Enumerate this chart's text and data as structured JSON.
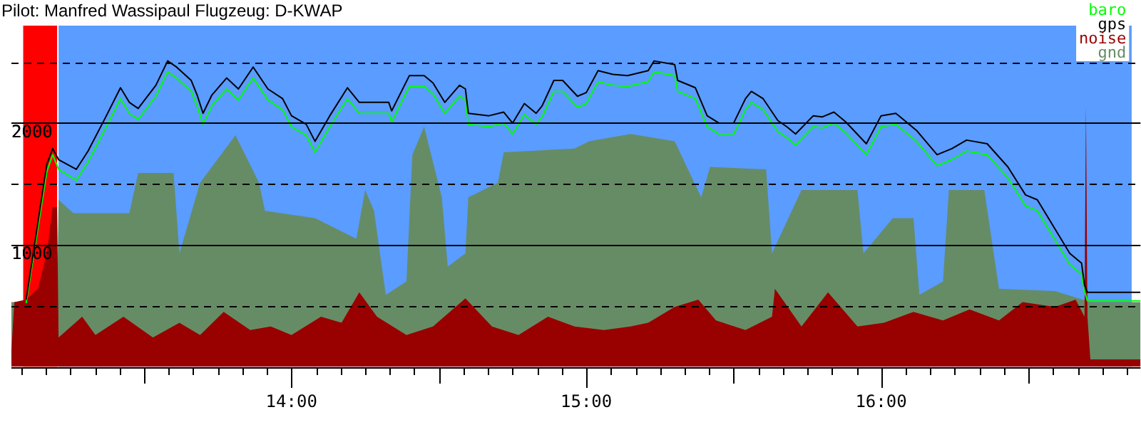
{
  "chart_data": {
    "type": "line",
    "title": "Pilot: Manfred Wassipaul Flugzeug: D-KWAP",
    "x": [
      13.1,
      13.17,
      13.19,
      13.21,
      13.27,
      13.31,
      13.37,
      13.42,
      13.45,
      13.48,
      13.54,
      13.58,
      13.61,
      13.66,
      13.68,
      13.7,
      13.73,
      13.78,
      13.82,
      13.87,
      13.92,
      13.97,
      14.0,
      14.05,
      14.08,
      14.13,
      14.19,
      14.23,
      14.28,
      14.33,
      14.34,
      14.4,
      14.45,
      14.48,
      14.52,
      14.57,
      14.59,
      14.6,
      14.67,
      14.72,
      14.75,
      14.79,
      14.83,
      14.85,
      14.89,
      14.92,
      14.97,
      15.0,
      15.04,
      15.09,
      15.14,
      15.21,
      15.23,
      15.3,
      15.31,
      15.37,
      15.41,
      15.45,
      15.5,
      15.54,
      15.56,
      15.6,
      15.65,
      15.68,
      15.71,
      15.77,
      15.8,
      15.84,
      15.88,
      15.95,
      16.0,
      16.05,
      16.12,
      16.19,
      16.24,
      16.29,
      16.36,
      16.43,
      16.49,
      16.53,
      16.59,
      16.64,
      16.68,
      16.69,
      16.7,
      16.88
    ],
    "series": [
      {
        "name": "baro",
        "type": "line",
        "color": "#00ff00",
        "values": [
          520,
          1600,
          1740,
          1620,
          1530,
          1680,
          1960,
          2200,
          2080,
          2030,
          2220,
          2420,
          2370,
          2260,
          2140,
          1990,
          2140,
          2280,
          2190,
          2370,
          2190,
          2110,
          1970,
          1900,
          1760,
          1970,
          2200,
          2080,
          2080,
          2080,
          2010,
          2300,
          2300,
          2240,
          2080,
          2220,
          2190,
          1990,
          1970,
          2000,
          1910,
          2070,
          1990,
          2050,
          2260,
          2260,
          2130,
          2160,
          2340,
          2310,
          2300,
          2340,
          2420,
          2390,
          2260,
          2200,
          1970,
          1910,
          1910,
          2110,
          2170,
          2110,
          1930,
          1880,
          1820,
          1970,
          1960,
          2000,
          1920,
          1740,
          1970,
          1990,
          1850,
          1650,
          1700,
          1770,
          1740,
          1550,
          1320,
          1280,
          1040,
          840,
          760,
          620,
          540,
          540
        ]
      },
      {
        "name": "gps",
        "type": "line",
        "color": "#000000",
        "values": [
          550,
          1660,
          1790,
          1700,
          1620,
          1770,
          2050,
          2290,
          2170,
          2120,
          2310,
          2510,
          2460,
          2350,
          2230,
          2080,
          2230,
          2370,
          2280,
          2460,
          2280,
          2200,
          2060,
          1990,
          1850,
          2060,
          2290,
          2170,
          2170,
          2170,
          2100,
          2390,
          2390,
          2330,
          2170,
          2310,
          2280,
          2080,
          2060,
          2090,
          2000,
          2160,
          2080,
          2140,
          2350,
          2350,
          2220,
          2250,
          2430,
          2400,
          2390,
          2430,
          2510,
          2480,
          2350,
          2290,
          2060,
          2000,
          2000,
          2200,
          2260,
          2200,
          2020,
          1970,
          1910,
          2060,
          2050,
          2090,
          2010,
          1830,
          2060,
          2080,
          1940,
          1740,
          1790,
          1860,
          1830,
          1640,
          1410,
          1370,
          1130,
          930,
          850,
          670,
          610,
          610
        ]
      },
      {
        "name": "noise",
        "type": "area",
        "color": "#990000",
        "x": [
          13.05,
          13.06,
          13.1,
          13.14,
          13.17,
          13.19,
          13.205,
          13.21,
          13.29,
          13.335,
          13.43,
          13.53,
          13.62,
          13.69,
          13.77,
          13.86,
          13.93,
          14.0,
          14.1,
          14.17,
          14.23,
          14.29,
          14.39,
          14.48,
          14.59,
          14.68,
          14.77,
          14.87,
          14.96,
          15.06,
          15.15,
          15.21,
          15.3,
          15.38,
          15.44,
          15.54,
          15.63,
          15.64,
          15.73,
          15.82,
          15.92,
          16.01,
          16.11,
          16.21,
          16.3,
          16.4,
          16.48,
          16.59,
          16.66,
          16.69,
          16.695,
          16.7,
          16.71,
          16.88
        ],
        "values": [
          130,
          530,
          550,
          640,
          930,
          1310,
          1310,
          240,
          410,
          260,
          410,
          240,
          360,
          260,
          450,
          300,
          330,
          260,
          410,
          360,
          610,
          410,
          260,
          330,
          560,
          330,
          260,
          410,
          330,
          300,
          330,
          360,
          490,
          550,
          380,
          300,
          410,
          640,
          330,
          610,
          330,
          360,
          450,
          380,
          470,
          380,
          530,
          490,
          550,
          410,
          2140,
          410,
          60,
          60
        ]
      },
      {
        "name": "gnd",
        "type": "area",
        "color": "#668c66",
        "x": [
          13.05,
          13.205,
          13.21,
          13.26,
          13.45,
          13.48,
          13.6,
          13.62,
          13.69,
          13.81,
          13.89,
          13.91,
          14.08,
          14.22,
          14.25,
          14.28,
          14.32,
          14.39,
          14.41,
          14.45,
          14.51,
          14.53,
          14.59,
          14.6,
          14.7,
          14.72,
          14.96,
          15.01,
          15.15,
          15.3,
          15.39,
          15.42,
          15.61,
          15.63,
          15.73,
          15.92,
          15.94,
          16.04,
          16.11,
          16.13,
          16.21,
          16.23,
          16.35,
          16.4,
          16.59,
          16.71,
          16.88
        ],
        "values": [
          530,
          530,
          1370,
          1260,
          1260,
          1590,
          1590,
          930,
          1510,
          1900,
          1510,
          1280,
          1220,
          1050,
          1450,
          1280,
          590,
          700,
          1740,
          1970,
          1390,
          820,
          930,
          1390,
          1510,
          1760,
          1790,
          1850,
          1910,
          1850,
          1390,
          1640,
          1620,
          930,
          1450,
          1450,
          930,
          1220,
          1220,
          590,
          700,
          1450,
          1450,
          640,
          620,
          530,
          530
        ]
      }
    ],
    "bands": [
      {
        "axis": "x",
        "from": 13.09,
        "to": 13.205,
        "color": "#ff0000"
      },
      {
        "axis": "x",
        "from": 13.21,
        "to": 16.85,
        "color": "#5a9cff"
      }
    ],
    "xlim": [
      13.05,
      16.88
    ],
    "xticks": [
      {
        "value": 13.0833,
        "label": null
      },
      {
        "value": 13.1667,
        "label": null
      },
      {
        "value": 13.25,
        "label": null
      },
      {
        "value": 13.3333,
        "label": null
      },
      {
        "value": 13.4167,
        "label": null
      },
      {
        "value": 13.5,
        "label": null
      },
      {
        "value": 13.5833,
        "label": null
      },
      {
        "value": 13.6667,
        "label": null
      },
      {
        "value": 13.75,
        "label": null
      },
      {
        "value": 13.8333,
        "label": null
      },
      {
        "value": 13.9167,
        "label": null
      },
      {
        "value": 14,
        "label": "14:00"
      },
      {
        "value": 14.0833,
        "label": null
      },
      {
        "value": 14.1667,
        "label": null
      },
      {
        "value": 14.25,
        "label": null
      },
      {
        "value": 14.3333,
        "label": null
      },
      {
        "value": 14.4167,
        "label": null
      },
      {
        "value": 14.5,
        "label": null
      },
      {
        "value": 14.5833,
        "label": null
      },
      {
        "value": 14.6667,
        "label": null
      },
      {
        "value": 14.75,
        "label": null
      },
      {
        "value": 14.8333,
        "label": null
      },
      {
        "value": 14.9167,
        "label": null
      },
      {
        "value": 15,
        "label": "15:00"
      },
      {
        "value": 15.0833,
        "label": null
      },
      {
        "value": 15.1667,
        "label": null
      },
      {
        "value": 15.25,
        "label": null
      },
      {
        "value": 15.3333,
        "label": null
      },
      {
        "value": 15.4167,
        "label": null
      },
      {
        "value": 15.5,
        "label": null
      },
      {
        "value": 15.5833,
        "label": null
      },
      {
        "value": 15.6667,
        "label": null
      },
      {
        "value": 15.75,
        "label": null
      },
      {
        "value": 15.8333,
        "label": null
      },
      {
        "value": 15.9167,
        "label": null
      },
      {
        "value": 16,
        "label": "16:00"
      },
      {
        "value": 16.0833,
        "label": null
      },
      {
        "value": 16.1667,
        "label": null
      },
      {
        "value": 16.25,
        "label": null
      },
      {
        "value": 16.3333,
        "label": null
      },
      {
        "value": 16.4167,
        "label": null
      },
      {
        "value": 16.5,
        "label": null
      },
      {
        "value": 16.5833,
        "label": null
      },
      {
        "value": 16.6667,
        "label": null
      },
      {
        "value": 16.75,
        "label": null
      },
      {
        "value": 16.8333,
        "label": null
      }
    ],
    "ylim": [
      0,
      2800
    ],
    "yticks": [
      {
        "value": 500,
        "label": null
      },
      1000,
      {
        "value": 1500,
        "label": null
      },
      2000,
      {
        "value": 2500,
        "label": null
      }
    ],
    "grid": "y",
    "legend": "top right"
  }
}
